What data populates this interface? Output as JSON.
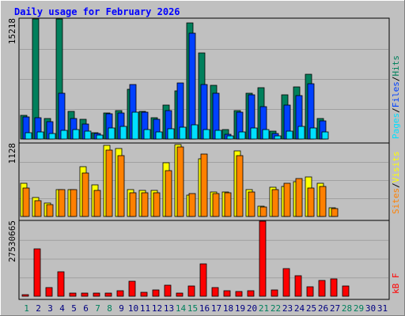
{
  "title": "Daily usage for February 2026",
  "colors": {
    "background": "#c0c0c0",
    "title": "#0000ff",
    "hits": "#00805c",
    "files": "#0040ff",
    "pages": "#00e0ff",
    "visits": "#ffff00",
    "sites": "#ff8000",
    "kbytes": "#ff0000",
    "weekend_label": "#00805c",
    "day_label": "#000080"
  },
  "chart_data": [
    {
      "type": "bar",
      "panel": "requests",
      "y_max_label": "15218",
      "ylim": [
        0,
        15218
      ],
      "legend": {
        "pages": "Pages",
        "files": "Files",
        "hits": "Hits",
        "sep": "/"
      },
      "categories": [
        "1",
        "2",
        "3",
        "4",
        "5",
        "6",
        "7",
        "8",
        "9",
        "10",
        "11",
        "12",
        "13",
        "14",
        "15",
        "16",
        "17",
        "18",
        "19",
        "20",
        "21",
        "22",
        "23",
        "24",
        "25",
        "26",
        "27",
        "28",
        "29",
        "30",
        "31"
      ],
      "series": [
        {
          "name": "Hits",
          "values": [
            3000,
            15218,
            2600,
            15218,
            3500,
            2500,
            800,
            3300,
            3600,
            6300,
            3500,
            2700,
            4300,
            6100,
            14700,
            10900,
            6800,
            1200,
            3600,
            5800,
            6500,
            1000,
            5600,
            6600,
            8200,
            2600,
            0,
            0,
            0,
            0,
            0
          ]
        },
        {
          "name": "Files",
          "values": [
            2800,
            2700,
            2200,
            5800,
            2600,
            1900,
            700,
            3200,
            3300,
            6900,
            3400,
            2500,
            3600,
            7100,
            13400,
            6900,
            5800,
            600,
            3400,
            5600,
            4100,
            700,
            4300,
            5500,
            7000,
            2300,
            0,
            0,
            0,
            0,
            0
          ]
        },
        {
          "name": "Pages",
          "values": [
            800,
            900,
            700,
            1100,
            1200,
            1000,
            500,
            1400,
            1600,
            3400,
            1200,
            900,
            1300,
            1500,
            1800,
            1200,
            1100,
            400,
            900,
            1400,
            1200,
            400,
            1000,
            1600,
            1400,
            900,
            0,
            0,
            0,
            0,
            0
          ]
        }
      ]
    },
    {
      "type": "bar",
      "panel": "visitors",
      "y_max_label": "1128",
      "ylim": [
        0,
        1128
      ],
      "legend": {
        "sites": "Sites",
        "visits": "Visits",
        "sep": "/"
      },
      "categories": [
        "1",
        "2",
        "3",
        "4",
        "5",
        "6",
        "7",
        "8",
        "9",
        "10",
        "11",
        "12",
        "13",
        "14",
        "15",
        "16",
        "17",
        "18",
        "19",
        "20",
        "21",
        "22",
        "23",
        "24",
        "25",
        "26",
        "27",
        "28",
        "29",
        "30",
        "31"
      ],
      "series": [
        {
          "name": "Visits",
          "values": [
            510,
            290,
            210,
            420,
            420,
            770,
            490,
            1100,
            1060,
            420,
            410,
            400,
            830,
            1120,
            330,
            890,
            380,
            380,
            1020,
            420,
            160,
            450,
            470,
            540,
            610,
            510,
            140,
            0,
            0,
            0,
            0
          ]
        },
        {
          "name": "Sites",
          "values": [
            440,
            250,
            190,
            420,
            420,
            680,
            410,
            1030,
            950,
            370,
            370,
            370,
            710,
            1080,
            350,
            970,
            360,
            370,
            950,
            380,
            150,
            420,
            520,
            590,
            440,
            470,
            120,
            0,
            0,
            0,
            0
          ]
        }
      ]
    },
    {
      "type": "bar",
      "panel": "volume",
      "y_max_label": "27530665",
      "ylim": [
        0,
        27530665
      ],
      "legend": {
        "kbytes": "kB F"
      },
      "categories": [
        "1",
        "2",
        "3",
        "4",
        "5",
        "6",
        "7",
        "8",
        "9",
        "10",
        "11",
        "12",
        "13",
        "14",
        "15",
        "16",
        "17",
        "18",
        "19",
        "20",
        "21",
        "22",
        "23",
        "24",
        "25",
        "26",
        "27",
        "28",
        "29",
        "30",
        "31"
      ],
      "series": [
        {
          "name": "kB F",
          "values": [
            700000,
            17500000,
            3200000,
            9000000,
            1100000,
            1200000,
            1300000,
            1100000,
            2100000,
            5500000,
            1400000,
            2300000,
            4000000,
            1300000,
            3900000,
            12000000,
            3200000,
            2100000,
            1600000,
            2100000,
            27530665,
            2300000,
            10000000,
            7500000,
            3400000,
            5800000,
            6300000,
            3900000,
            0,
            0,
            0
          ]
        }
      ]
    }
  ],
  "x_axis": {
    "days": [
      "1",
      "2",
      "3",
      "4",
      "5",
      "6",
      "7",
      "8",
      "9",
      "10",
      "11",
      "12",
      "13",
      "14",
      "15",
      "16",
      "17",
      "18",
      "19",
      "20",
      "21",
      "22",
      "23",
      "24",
      "25",
      "26",
      "27",
      "28",
      "29",
      "30",
      "31"
    ],
    "weekend": [
      1,
      7,
      8,
      14,
      15,
      21,
      22,
      28,
      29
    ]
  }
}
